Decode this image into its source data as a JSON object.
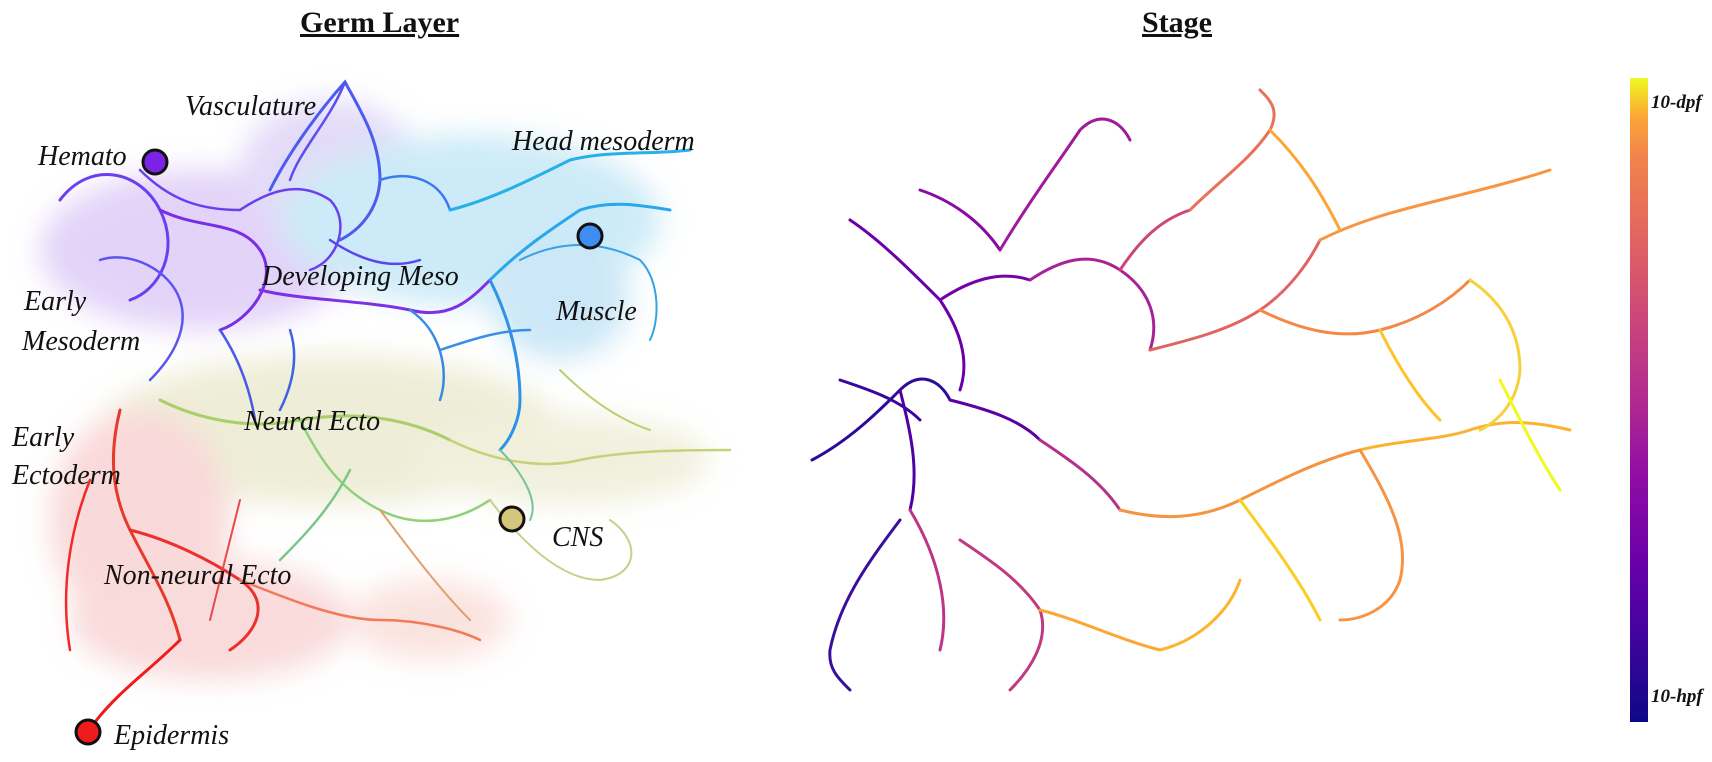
{
  "panels": {
    "left": {
      "title": "Germ Layer",
      "labels": {
        "vasculature": "Vasculature",
        "hemato": "Hemato",
        "head_mesoderm": "Head mesoderm",
        "developing_meso": "Developing Meso",
        "muscle": "Muscle",
        "early_mesoderm_1": "Early",
        "early_mesoderm_2": "Mesoderm",
        "neural_ecto": "Neural Ecto",
        "early_ectoderm_1": "Early",
        "early_ectoderm_2": "Ectoderm",
        "cns": "CNS",
        "non_neural_ecto": "Non-neural Ecto",
        "epidermis": "Epidermis"
      },
      "colors": {
        "hemato": "#7b22e6",
        "vasculature": "#5a4cf0",
        "muscle": "#3d8ef0",
        "head_mesoderm": "#2ab4e8",
        "neural_ecto": "#c9c28a",
        "non_neural_ecto": "#e85050",
        "epidermis": "#ee1c1c",
        "cns": "#d4c67a"
      }
    },
    "right": {
      "title": "Stage",
      "colorbar": {
        "top_label": "10-dpf",
        "bottom_label": "10-hpf",
        "colormap": "plasma"
      }
    }
  }
}
